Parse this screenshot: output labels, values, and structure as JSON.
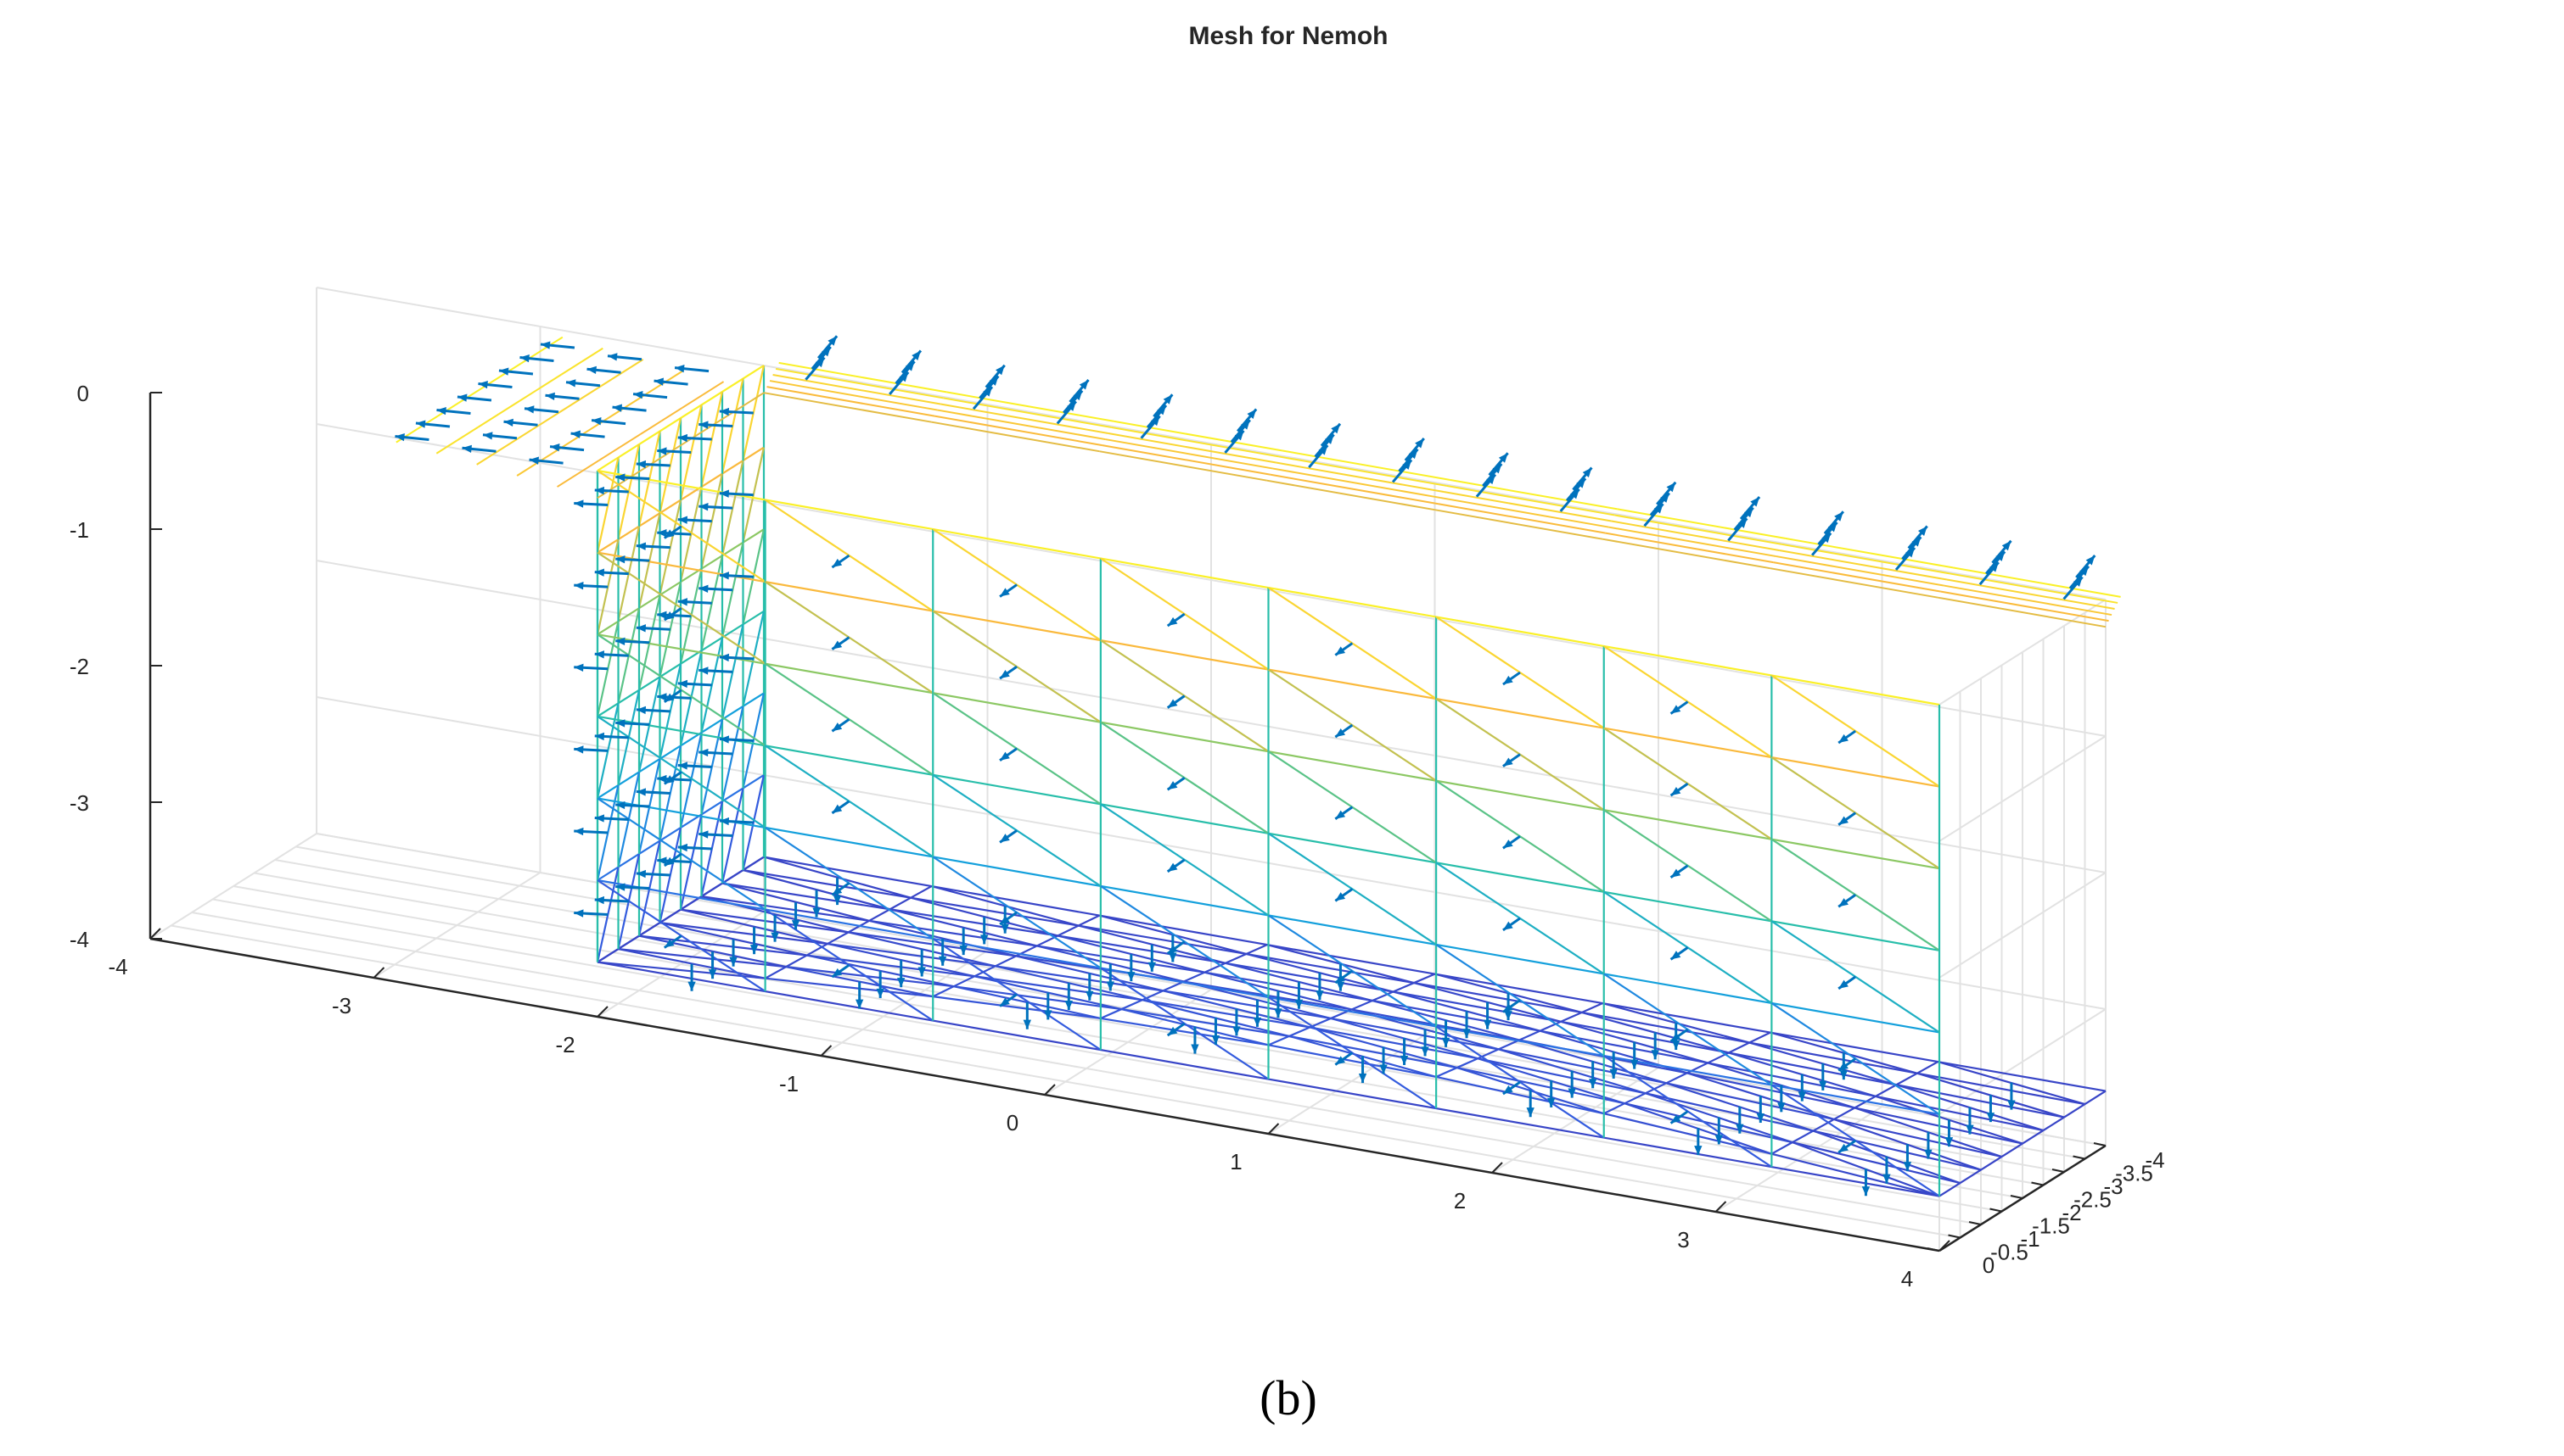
{
  "figure": {
    "caption": "(b)"
  },
  "chart_data": {
    "type": "3d-mesh-quiver",
    "title": "Mesh for Nemoh",
    "xlabel": "",
    "ylabel": "",
    "zlabel": "",
    "xlim": [
      -4,
      4
    ],
    "ylim": [
      -4,
      0
    ],
    "zlim": [
      -4,
      0
    ],
    "x_ticks": [
      "-4",
      "-3",
      "-2",
      "-1",
      "0",
      "1",
      "2",
      "3",
      "4"
    ],
    "y_ticks": [
      "-4",
      "-3.5",
      "-3",
      "-2.5",
      "-2",
      "-1.5",
      "-1",
      "-0.5",
      "0"
    ],
    "z_ticks": [
      "0",
      "-1",
      "-2",
      "-3",
      "-4"
    ],
    "grid": true,
    "body": {
      "description": "Hull panel mesh: vertical side walls, flat bottom and rounded free-surface lip",
      "x_extent": [
        -2,
        4
      ],
      "y_extent": [
        -4,
        0
      ],
      "z_extent": [
        -4,
        0
      ],
      "colormap": "parula",
      "normals_color": "#0072BD"
    }
  }
}
